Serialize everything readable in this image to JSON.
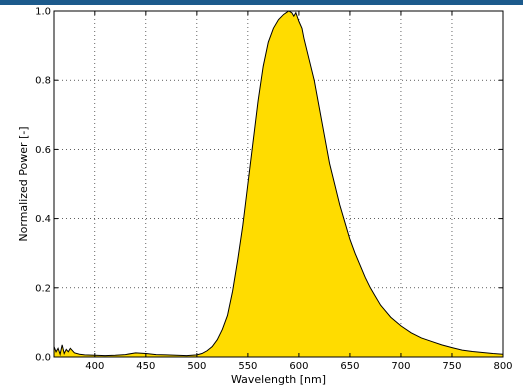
{
  "header": {
    "bar_color": "#1c5a8c"
  },
  "chart_data": {
    "type": "area",
    "title": "",
    "xlabel": "Wavelength [nm]",
    "ylabel": "Normalized Power [-]",
    "xlim": [
      360,
      800
    ],
    "ylim": [
      0,
      1.0
    ],
    "x_ticks": [
      400,
      450,
      500,
      550,
      600,
      650,
      700,
      750,
      800
    ],
    "y_ticks": [
      0.0,
      0.2,
      0.4,
      0.6,
      0.8,
      1.0
    ],
    "x_tick_labels": [
      "400",
      "450",
      "500",
      "550",
      "600",
      "650",
      "700",
      "750",
      "800"
    ],
    "y_tick_labels": [
      "0.0",
      "0.2",
      "0.4",
      "0.6",
      "0.8",
      "1.0"
    ],
    "grid": true,
    "fill_color": "#ffdc00",
    "line_color": "#000000",
    "series": [
      {
        "x": [
          360,
          362,
          364,
          366,
          368,
          370,
          372,
          374,
          376,
          380,
          385,
          390,
          400,
          410,
          420,
          430,
          440,
          450,
          460,
          470,
          480,
          490,
          500,
          505,
          510,
          515,
          520,
          525,
          530,
          535,
          540,
          545,
          550,
          555,
          560,
          565,
          570,
          575,
          580,
          585,
          590,
          593,
          595,
          597,
          600,
          603,
          605,
          610,
          615,
          620,
          625,
          630,
          635,
          640,
          645,
          650,
          655,
          660,
          665,
          670,
          675,
          680,
          690,
          700,
          710,
          720,
          730,
          740,
          750,
          760,
          770,
          780,
          790,
          800
        ],
        "y": [
          0.03,
          0.015,
          0.025,
          0.008,
          0.035,
          0.01,
          0.022,
          0.015,
          0.025,
          0.012,
          0.008,
          0.006,
          0.005,
          0.004,
          0.005,
          0.007,
          0.012,
          0.01,
          0.007,
          0.006,
          0.005,
          0.004,
          0.006,
          0.01,
          0.018,
          0.03,
          0.05,
          0.08,
          0.12,
          0.19,
          0.28,
          0.38,
          0.5,
          0.62,
          0.74,
          0.84,
          0.91,
          0.95,
          0.975,
          0.99,
          1.0,
          0.995,
          0.985,
          0.995,
          0.97,
          0.95,
          0.92,
          0.86,
          0.8,
          0.72,
          0.64,
          0.56,
          0.5,
          0.44,
          0.39,
          0.34,
          0.3,
          0.265,
          0.23,
          0.2,
          0.175,
          0.15,
          0.115,
          0.09,
          0.07,
          0.055,
          0.045,
          0.035,
          0.027,
          0.02,
          0.016,
          0.013,
          0.01,
          0.008
        ]
      }
    ]
  }
}
